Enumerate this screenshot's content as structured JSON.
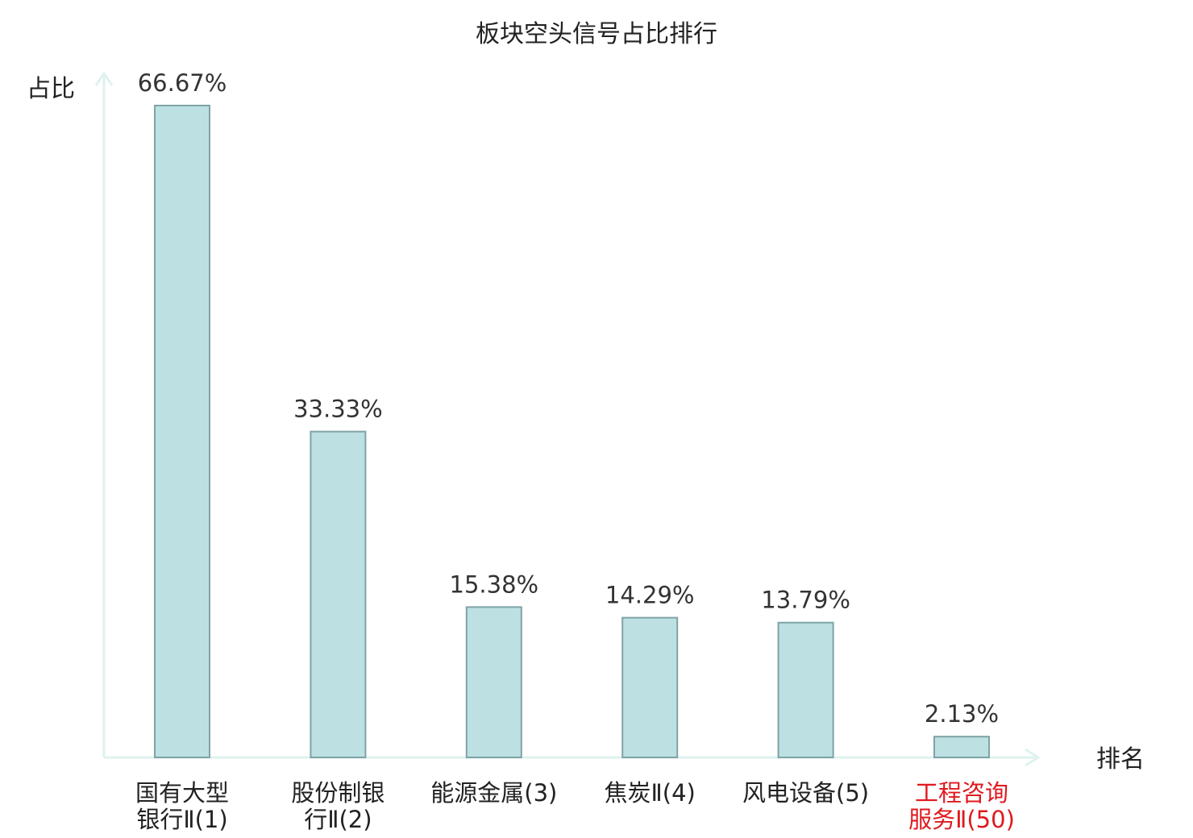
{
  "chart_data": {
    "type": "bar",
    "title": "板块空头信号占比排行",
    "xlabel": "排名",
    "ylabel": "占比",
    "ylim": [
      0,
      70
    ],
    "grid": false,
    "legend": "none",
    "categories": [
      {
        "lines": [
          "国有大型",
          "银行Ⅱ(1)"
        ],
        "highlight": false
      },
      {
        "lines": [
          "股份制银",
          "行Ⅱ(2)"
        ],
        "highlight": false
      },
      {
        "lines": [
          "能源金属(3)"
        ],
        "highlight": false
      },
      {
        "lines": [
          "焦炭Ⅱ(4)"
        ],
        "highlight": false
      },
      {
        "lines": [
          "风电设备(5)"
        ],
        "highlight": false
      },
      {
        "lines": [
          "工程咨询",
          "服务Ⅱ(50)"
        ],
        "highlight": true
      }
    ],
    "values": [
      66.67,
      33.33,
      15.38,
      14.29,
      13.79,
      2.13
    ],
    "value_labels": [
      "66.67%",
      "33.33%",
      "15.38%",
      "14.29%",
      "13.79%",
      "2.13%"
    ]
  },
  "colors": {
    "bar_fill": "#bde0e2",
    "bar_stroke": "#7fa3a6",
    "axis": "#dff2ef",
    "text": "#222222",
    "highlight_text": "#e0191e"
  }
}
